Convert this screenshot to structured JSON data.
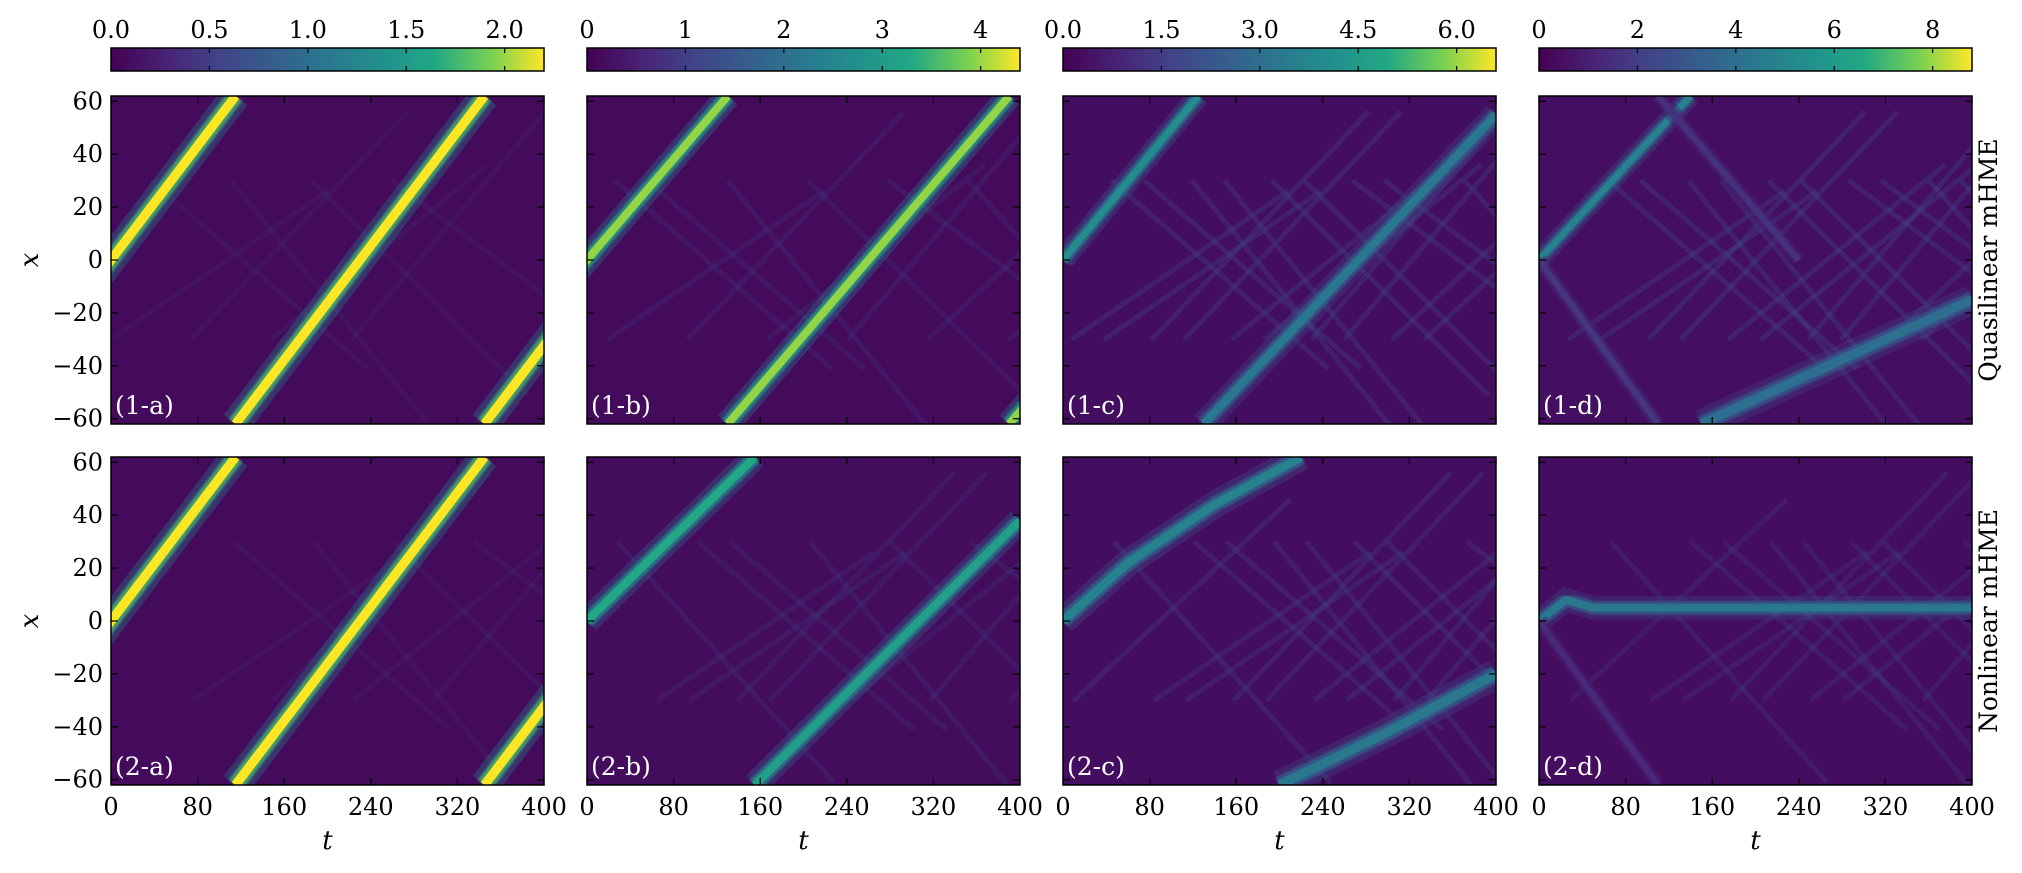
{
  "chart_data": {
    "type": "heatmap",
    "colormap": "viridis",
    "colors": {
      "background": "#440154",
      "low": "#3b1c6e",
      "mid": "#21918c",
      "high": "#fde725"
    },
    "x_axis": {
      "label": "t",
      "range": [
        0,
        400
      ],
      "ticks": [
        "0",
        "80",
        "160",
        "240",
        "320",
        "400"
      ]
    },
    "y_axis": {
      "label": "x",
      "range": [
        -62,
        62
      ],
      "ticks": [
        "60",
        "40",
        "20",
        "0",
        "−20",
        "−40",
        "−60"
      ],
      "tick_values": [
        60,
        40,
        20,
        0,
        -20,
        -40,
        -60
      ]
    },
    "row_labels": [
      "Quasilinear mHME",
      "Nonlinear mHME"
    ],
    "columns": [
      {
        "colorbar_range": [
          0,
          2.2
        ],
        "colorbar_ticks": [
          "0.0",
          "0.5",
          "1.0",
          "1.5",
          "2.0"
        ],
        "colorbar_tick_values": [
          0,
          0.5,
          1.0,
          1.5,
          2.0
        ]
      },
      {
        "colorbar_range": [
          0,
          4.4
        ],
        "colorbar_ticks": [
          "0",
          "1",
          "2",
          "3",
          "4"
        ],
        "colorbar_tick_values": [
          0,
          1,
          2,
          3,
          4
        ]
      },
      {
        "colorbar_range": [
          0,
          6.6
        ],
        "colorbar_ticks": [
          "0.0",
          "1.5",
          "3.0",
          "4.5",
          "6.0"
        ],
        "colorbar_tick_values": [
          0,
          1.5,
          3.0,
          4.5,
          6.0
        ]
      },
      {
        "colorbar_range": [
          0,
          8.8
        ],
        "colorbar_ticks": [
          "0",
          "2",
          "4",
          "6",
          "8"
        ],
        "colorbar_tick_values": [
          0,
          2,
          4,
          6,
          8
        ]
      }
    ],
    "panels": [
      {
        "label": "(1-a)",
        "row": 0,
        "col": 0,
        "intensity": 1.0,
        "background_waves": 0.15,
        "tracks": [
          {
            "points": [
              [
                0,
                0
              ],
              [
                115,
                62
              ]
            ],
            "wrap": true,
            "width": 3.5,
            "peak": 1.0
          }
        ]
      },
      {
        "label": "(1-b)",
        "row": 0,
        "col": 1,
        "intensity": 0.88,
        "background_waves": 0.4,
        "tracks": [
          {
            "points": [
              [
                0,
                0
              ],
              [
                130,
                62
              ]
            ],
            "wrap": true,
            "width": 3.0,
            "peak": 0.9
          }
        ]
      },
      {
        "label": "(1-c)",
        "row": 0,
        "col": 2,
        "intensity": 0.55,
        "background_waves": 0.9,
        "tracks": [
          {
            "points": [
              [
                0,
                0
              ],
              [
                125,
                62
              ]
            ],
            "width": 2.6,
            "peak": 0.6
          },
          {
            "points": [
              [
                130,
                -62
              ],
              [
                400,
                55
              ]
            ],
            "width": 3.0,
            "peak": 0.5
          }
        ]
      },
      {
        "label": "(1-d)",
        "row": 0,
        "col": 3,
        "intensity": 0.5,
        "background_waves": 1.0,
        "tracks": [
          {
            "points": [
              [
                0,
                0
              ],
              [
                140,
                62
              ]
            ],
            "width": 2.4,
            "peak": 0.55
          },
          {
            "points": [
              [
                0,
                0
              ],
              [
                110,
                -62
              ]
            ],
            "width": 2.0,
            "peak": 0.2
          },
          {
            "points": [
              [
                150,
                -62
              ],
              [
                400,
                -15
              ]
            ],
            "width": 3.5,
            "peak": 0.45
          },
          {
            "points": [
              [
                110,
                62
              ],
              [
                240,
                0
              ]
            ],
            "width": 2.0,
            "peak": 0.18
          }
        ]
      },
      {
        "label": "(2-a)",
        "row": 1,
        "col": 0,
        "intensity": 1.0,
        "background_waves": 0.15,
        "tracks": [
          {
            "points": [
              [
                0,
                0
              ],
              [
                115,
                62
              ]
            ],
            "wrap": true,
            "width": 3.5,
            "peak": 1.0
          }
        ]
      },
      {
        "label": "(2-b)",
        "row": 1,
        "col": 1,
        "intensity": 0.75,
        "background_waves": 0.5,
        "tracks": [
          {
            "points": [
              [
                0,
                0
              ],
              [
                155,
                62
              ]
            ],
            "width": 3.0,
            "peak": 0.75
          },
          {
            "points": [
              [
                155,
                -62
              ],
              [
                400,
                38
              ]
            ],
            "width": 3.0,
            "peak": 0.7
          }
        ]
      },
      {
        "label": "(2-c)",
        "row": 1,
        "col": 2,
        "intensity": 0.55,
        "background_waves": 0.8,
        "tracks": [
          {
            "points": [
              [
                0,
                0
              ],
              [
                60,
                22
              ],
              [
                140,
                44
              ],
              [
                220,
                62
              ]
            ],
            "width": 3.2,
            "peak": 0.55
          },
          {
            "points": [
              [
                200,
                -62
              ],
              [
                300,
                -42
              ],
              [
                400,
                -20
              ]
            ],
            "width": 3.5,
            "peak": 0.5
          }
        ]
      },
      {
        "label": "(2-d)",
        "row": 1,
        "col": 3,
        "intensity": 0.45,
        "background_waves": 0.7,
        "tracks": [
          {
            "points": [
              [
                0,
                0
              ],
              [
                25,
                8
              ],
              [
                50,
                5
              ],
              [
                400,
                5
              ]
            ],
            "width": 2.8,
            "peak": 0.5
          },
          {
            "points": [
              [
                0,
                0
              ],
              [
                110,
                -62
              ]
            ],
            "width": 2.0,
            "peak": 0.15
          }
        ]
      }
    ]
  }
}
